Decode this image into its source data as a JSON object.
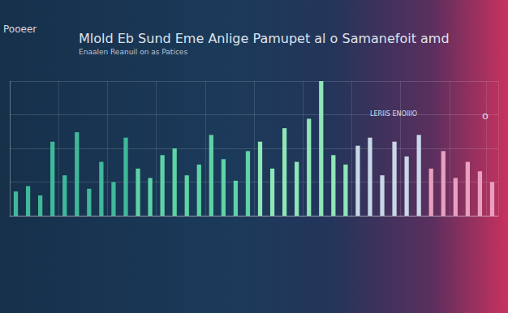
{
  "chart_data": {
    "type": "bar",
    "title": "Mlold Eb Sund Eme Anlige Pamupet al o Samanefoit amd",
    "subtitle": "Enaalen Reanuil on as Patices",
    "annotations": [
      "Pooeer",
      "LERIIS ENOIIIO",
      "o"
    ],
    "categories": [
      null,
      null,
      null,
      null,
      null,
      null,
      null,
      null,
      null,
      null,
      null,
      null,
      null,
      null,
      null,
      null,
      null,
      null,
      null,
      null,
      null,
      null,
      null,
      null,
      null,
      null,
      null,
      null,
      null,
      null,
      null,
      null,
      null,
      null,
      null,
      null,
      null,
      null,
      null,
      null
    ],
    "values": [
      18,
      22,
      15,
      55,
      30,
      62,
      20,
      40,
      25,
      58,
      35,
      28,
      45,
      50,
      30,
      38,
      60,
      42,
      26,
      48,
      55,
      35,
      65,
      40,
      72,
      100,
      45,
      38,
      52,
      58,
      30,
      55,
      44,
      60,
      35,
      48,
      28,
      40,
      33,
      25
    ],
    "colors": [
      "#3fb99a",
      "#3fb99a",
      "#3fb99a",
      "#3fb99a",
      "#3fb99a",
      "#3fb99a",
      "#3fb99a",
      "#3fb99a",
      "#3fb99a",
      "#3fb99a",
      "#5ed3a6",
      "#5ed3a6",
      "#5ed3a6",
      "#5ed3a6",
      "#5ed3a6",
      "#5ed3a6",
      "#5ed3a6",
      "#5ed3a6",
      "#5ed3a6",
      "#5ed3a6",
      "#8fe6b8",
      "#8fe6b8",
      "#8fe6b8",
      "#8fe6b8",
      "#8fe6b8",
      "#8fe6b8",
      "#8fe6b8",
      "#8fe6b8",
      "#c9d8e8",
      "#c9d8e8",
      "#c9d8e8",
      "#c9d8e8",
      "#c9d8e8",
      "#c9d8e8",
      "#e8a0c0",
      "#e8a0c0",
      "#e8a0c0",
      "#e8a0c0",
      "#e8a0c0",
      "#e8a0c0"
    ],
    "ylim": [
      0,
      100
    ],
    "yticks": [
      0,
      25,
      50,
      75,
      100
    ],
    "grid": true,
    "tick_labels": false
  }
}
